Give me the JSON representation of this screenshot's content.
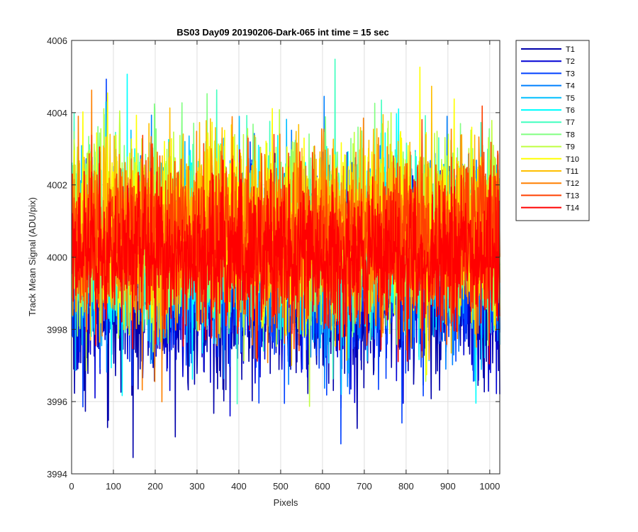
{
  "chart_data": {
    "type": "line",
    "title": "BS03 Day09 20190206-Dark-065 int time = 15 sec",
    "xlabel": "Pixels",
    "ylabel": "Track Mean Signal (ADU/pix)",
    "xlim": [
      0,
      1024
    ],
    "ylim": [
      3994,
      4006
    ],
    "x_ticks": [
      0,
      100,
      200,
      300,
      400,
      500,
      600,
      700,
      800,
      900,
      1000
    ],
    "y_ticks": [
      3994,
      3996,
      3998,
      4000,
      4002,
      4004,
      4006
    ],
    "grid": true,
    "legend_position": "outside-right-top",
    "n_points_per_series": 1024,
    "value_note_source": "",
    "series": [
      {
        "name": "T1",
        "color": "#0000AA",
        "mean": 3999.0,
        "spread": 1.3
      },
      {
        "name": "T2",
        "color": "#0000D5",
        "mean": 3999.3,
        "spread": 1.2
      },
      {
        "name": "T3",
        "color": "#0040FF",
        "mean": 3999.6,
        "spread": 1.2
      },
      {
        "name": "T4",
        "color": "#0080FF",
        "mean": 3999.9,
        "spread": 1.2
      },
      {
        "name": "T5",
        "color": "#00BFFF",
        "mean": 4000.2,
        "spread": 1.2
      },
      {
        "name": "T6",
        "color": "#00FFFF",
        "mean": 4000.4,
        "spread": 1.2
      },
      {
        "name": "T7",
        "color": "#40FFBF",
        "mean": 4000.6,
        "spread": 1.2
      },
      {
        "name": "T8",
        "color": "#80FF80",
        "mean": 4000.7,
        "spread": 1.2
      },
      {
        "name": "T9",
        "color": "#BFFF40",
        "mean": 4000.8,
        "spread": 1.2
      },
      {
        "name": "T10",
        "color": "#FFFF00",
        "mean": 4000.8,
        "spread": 1.2
      },
      {
        "name": "T11",
        "color": "#FFBF00",
        "mean": 4000.7,
        "spread": 1.2
      },
      {
        "name": "T12",
        "color": "#FF8000",
        "mean": 4000.6,
        "spread": 1.2
      },
      {
        "name": "T13",
        "color": "#FF4000",
        "mean": 4000.5,
        "spread": 1.1
      },
      {
        "name": "T14",
        "color": "#FF0000",
        "mean": 4000.0,
        "spread": 1.0
      }
    ]
  }
}
